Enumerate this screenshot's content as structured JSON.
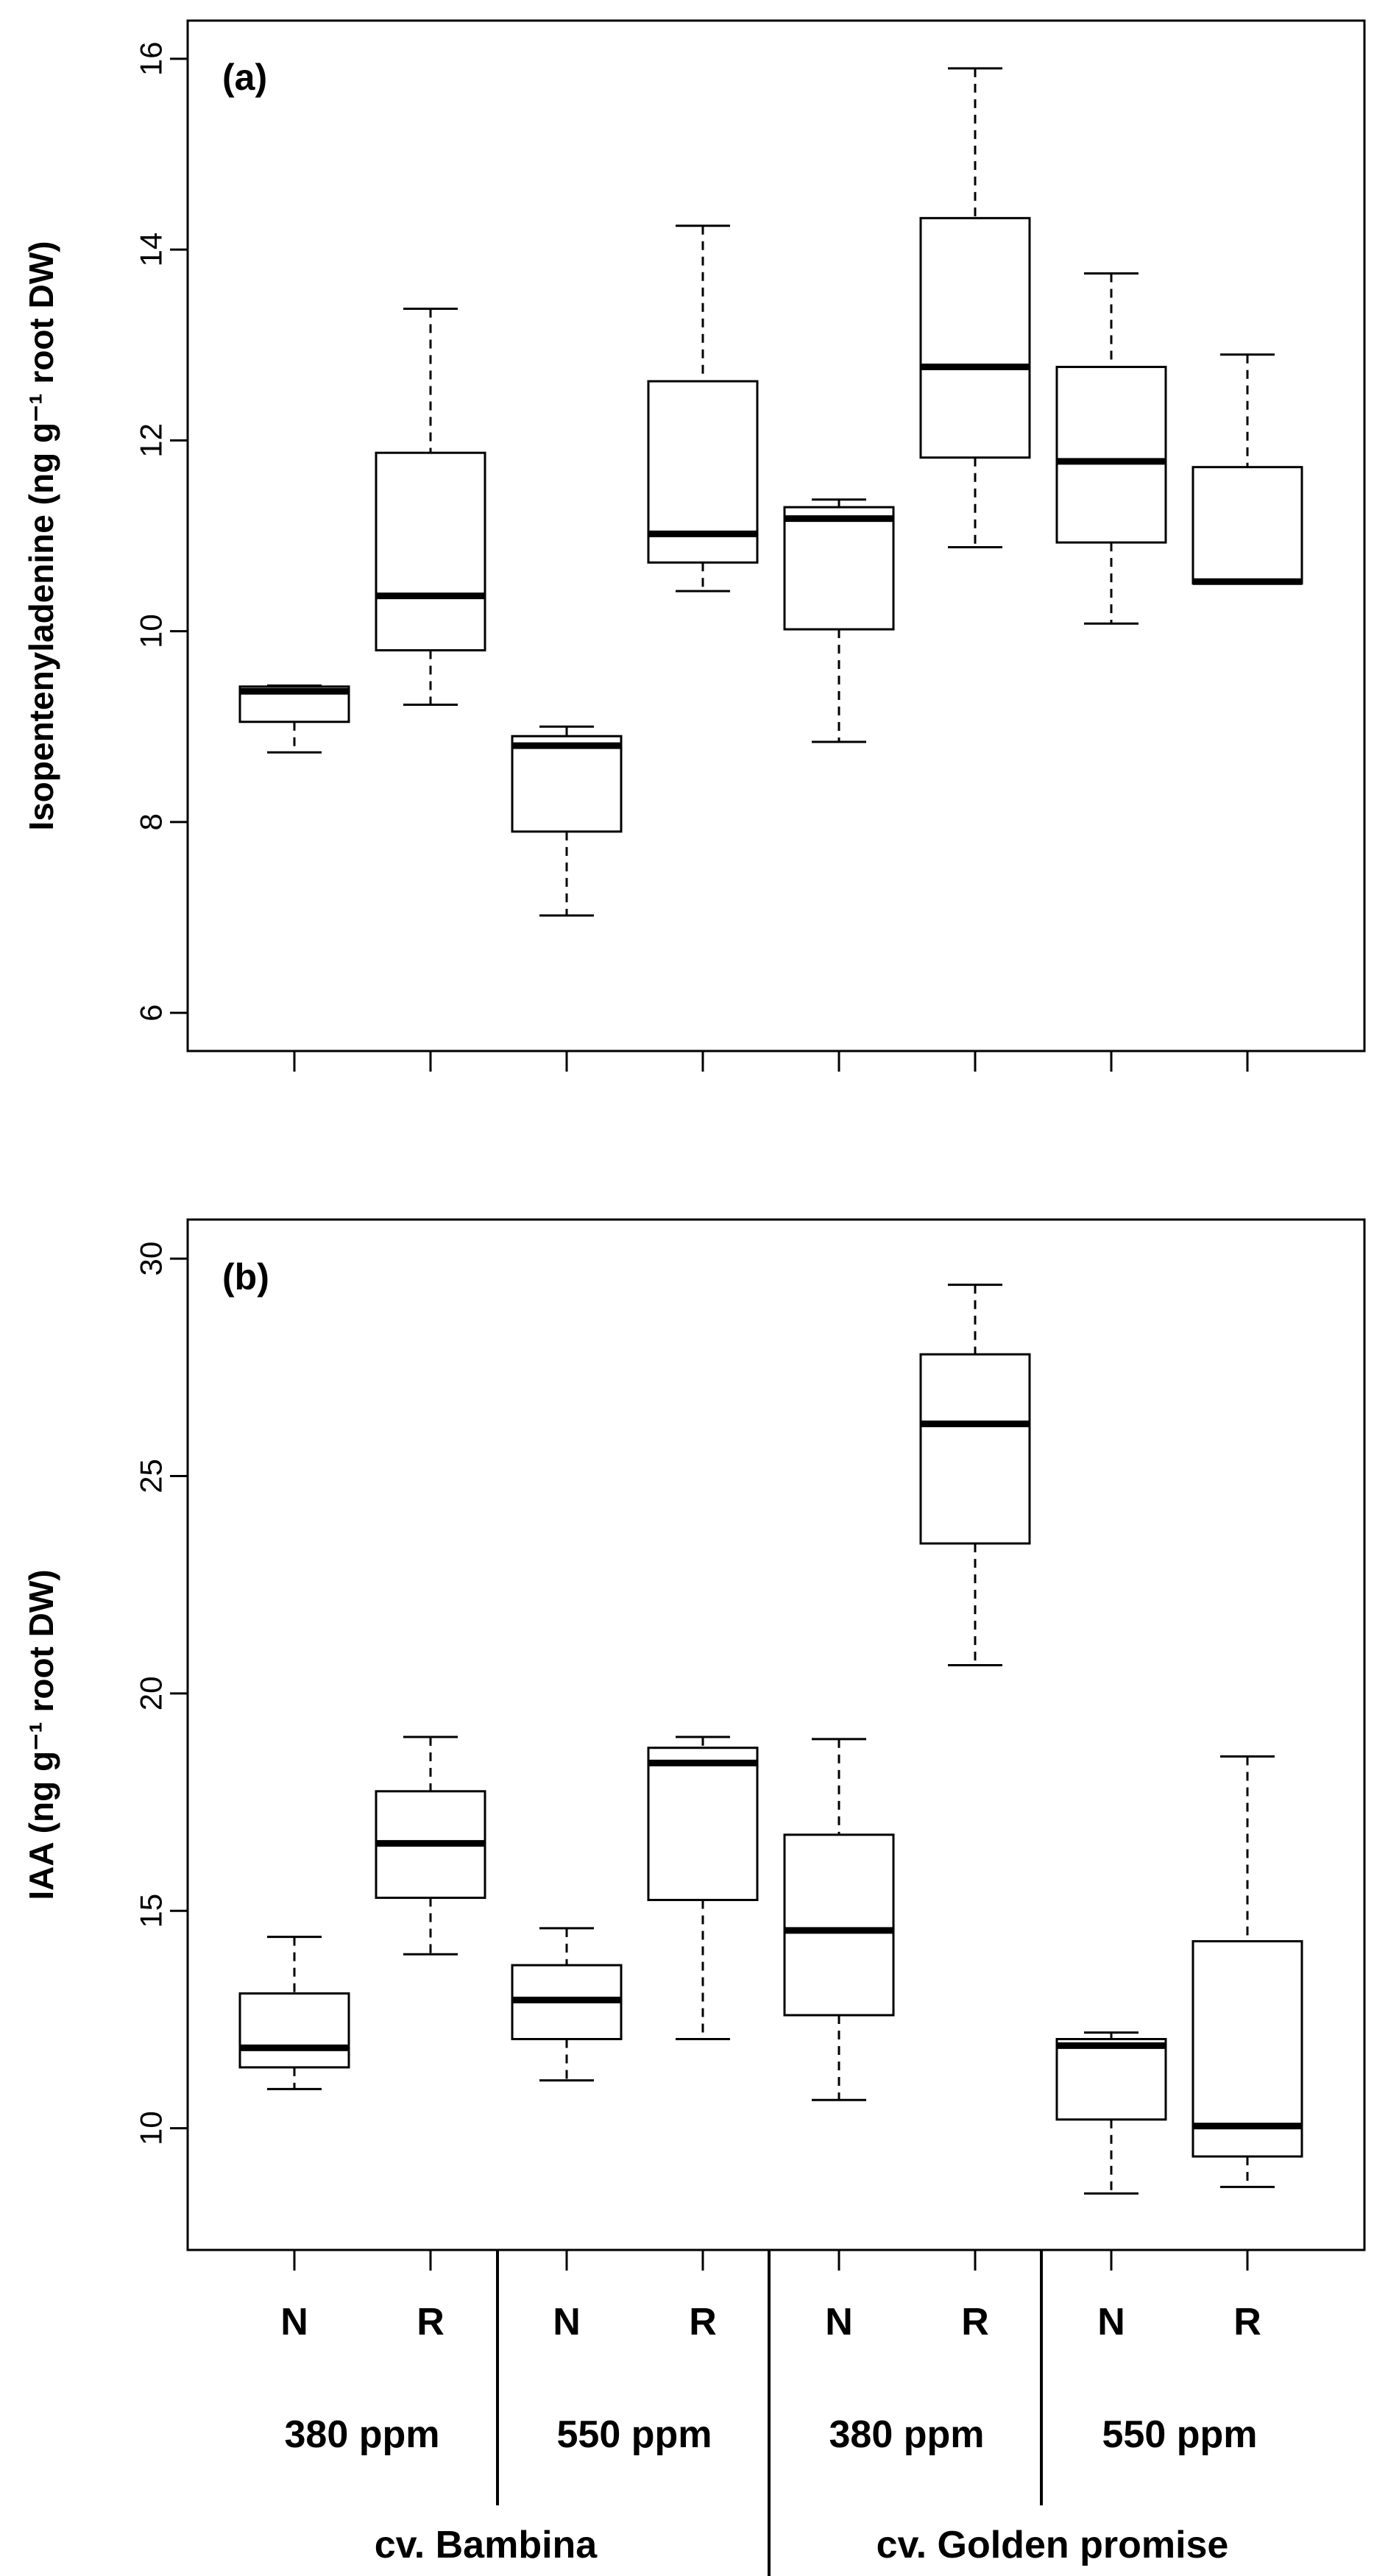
{
  "chart_data": [
    {
      "type": "boxplot",
      "panel_label": "(a)",
      "ylabel": "Isopentenyladenine (ng g⁻¹ root DW)",
      "ylim": [
        5.6,
        16.4
      ],
      "yticks": [
        6,
        8,
        10,
        12,
        14,
        16
      ],
      "grid": false,
      "categories": [
        "N",
        "R",
        "N",
        "R",
        "N",
        "R",
        "N",
        "R"
      ],
      "boxes": [
        {
          "min": 8.73,
          "q1": 9.05,
          "median": 9.37,
          "q3": 9.42,
          "max": 9.43
        },
        {
          "min": 9.23,
          "q1": 9.8,
          "median": 10.37,
          "q3": 11.87,
          "max": 13.38
        },
        {
          "min": 7.02,
          "q1": 7.9,
          "median": 8.8,
          "q3": 8.9,
          "max": 9.0
        },
        {
          "min": 10.42,
          "q1": 10.72,
          "median": 11.02,
          "q3": 12.62,
          "max": 14.25
        },
        {
          "min": 8.84,
          "q1": 10.02,
          "median": 11.18,
          "q3": 11.3,
          "max": 11.38
        },
        {
          "min": 10.88,
          "q1": 11.82,
          "median": 12.77,
          "q3": 14.33,
          "max": 15.9
        },
        {
          "min": 10.08,
          "q1": 10.93,
          "median": 11.78,
          "q3": 12.77,
          "max": 13.75
        },
        {
          "min": 10.5,
          "q1": 10.5,
          "median": 10.52,
          "q3": 11.72,
          "max": 12.9
        }
      ]
    },
    {
      "type": "boxplot",
      "panel_label": "(b)",
      "ylabel": "IAA (ng g⁻¹ root DW)",
      "ylim": [
        7.2,
        30.9
      ],
      "yticks": [
        10,
        15,
        20,
        25,
        30
      ],
      "grid": false,
      "categories": [
        "N",
        "R",
        "N",
        "R",
        "N",
        "R",
        "N",
        "R"
      ],
      "boxes": [
        {
          "min": 10.9,
          "q1": 11.4,
          "median": 11.85,
          "q3": 13.1,
          "max": 14.4
        },
        {
          "min": 14.0,
          "q1": 15.3,
          "median": 16.55,
          "q3": 17.75,
          "max": 19.0
        },
        {
          "min": 11.1,
          "q1": 12.05,
          "median": 12.95,
          "q3": 13.75,
          "max": 14.6
        },
        {
          "min": 12.05,
          "q1": 15.25,
          "median": 18.4,
          "q3": 18.75,
          "max": 19.0
        },
        {
          "min": 10.65,
          "q1": 12.6,
          "median": 14.55,
          "q3": 16.75,
          "max": 18.95
        },
        {
          "min": 20.65,
          "q1": 23.45,
          "median": 26.2,
          "q3": 27.8,
          "max": 29.4
        },
        {
          "min": 8.5,
          "q1": 10.2,
          "median": 11.9,
          "q3": 12.05,
          "max": 12.2
        },
        {
          "min": 8.65,
          "q1": 9.35,
          "median": 10.05,
          "q3": 14.3,
          "max": 18.55
        }
      ]
    }
  ],
  "x_groups": {
    "treatment_labels": [
      "N",
      "R",
      "N",
      "R",
      "N",
      "R",
      "N",
      "R"
    ],
    "ppm_labels": [
      "380 ppm",
      "550 ppm",
      "380 ppm",
      "550 ppm"
    ],
    "cultivar_labels": [
      "cv. Bambina",
      "cv. Golden promise"
    ]
  }
}
